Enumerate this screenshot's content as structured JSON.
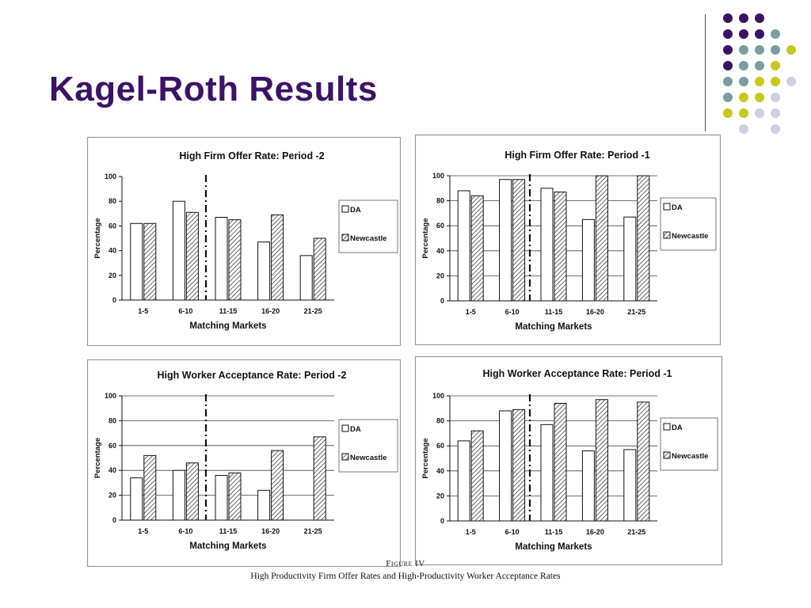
{
  "slide": {
    "title": "Kagel-Roth Results",
    "figure_label": "Figure IV",
    "figure_caption": "High Productivity Firm Offer Rates and High-Productivity Worker Acceptance Rates",
    "accent_colors": {
      "purple": "#3b1366",
      "teal": "#7a9e9f",
      "olive": "#c8c81e",
      "lavender": "#cfcfe6"
    }
  },
  "chart_data": [
    {
      "type": "bar",
      "title": "High Firm Offer Rate:  Period -2",
      "xlabel": "Matching Markets",
      "ylabel": "Percentage",
      "ylim": [
        0,
        100
      ],
      "yticks": [
        "0",
        "20",
        "40",
        "60",
        "80",
        "100"
      ],
      "categories": [
        "1-5",
        "6-10",
        "11-15",
        "16-20",
        "21-25"
      ],
      "series": [
        {
          "name": "DA",
          "values": [
            62,
            80,
            67,
            47,
            36
          ],
          "fill": "#ffffff"
        },
        {
          "name": "Newcastle",
          "values": [
            62,
            71,
            65,
            69,
            50
          ],
          "fill": "hatch"
        }
      ],
      "grid": false,
      "legend_position": "right"
    },
    {
      "type": "bar",
      "title": "High Firm Offer Rate:  Period -1",
      "xlabel": "Matching Markets",
      "ylabel": "Percentage",
      "ylim": [
        0,
        100
      ],
      "yticks": [
        "0",
        "20",
        "40",
        "60",
        "80",
        "100"
      ],
      "categories": [
        "1-5",
        "6-10",
        "11-15",
        "16-20",
        "21-25"
      ],
      "series": [
        {
          "name": "DA",
          "values": [
            88,
            97,
            90,
            65,
            67
          ],
          "fill": "#ffffff"
        },
        {
          "name": "Newcastle",
          "values": [
            84,
            97,
            87,
            100,
            100
          ],
          "fill": "hatch"
        }
      ],
      "grid": true,
      "legend_position": "right"
    },
    {
      "type": "bar",
      "title": "High Worker Acceptance Rate:  Period -2",
      "xlabel": "Matching Markets",
      "ylabel": "Percentage",
      "ylim": [
        0,
        100
      ],
      "yticks": [
        "0",
        "20",
        "40",
        "60",
        "80",
        "100"
      ],
      "categories": [
        "1-5",
        "6-10",
        "11-15",
        "16-20",
        "21-25"
      ],
      "series": [
        {
          "name": "DA",
          "values": [
            34,
            40,
            36,
            24,
            0
          ],
          "fill": "#ffffff"
        },
        {
          "name": "Newcastle",
          "values": [
            52,
            46,
            38,
            56,
            67
          ],
          "fill": "hatch"
        }
      ],
      "grid": true,
      "legend_position": "right"
    },
    {
      "type": "bar",
      "title": "High Worker Acceptance Rate:  Period -1",
      "xlabel": "Matching Markets",
      "ylabel": "Percentage",
      "ylim": [
        0,
        100
      ],
      "yticks": [
        "0",
        "20",
        "40",
        "60",
        "80",
        "100"
      ],
      "categories": [
        "1-5",
        "6-10",
        "11-15",
        "16-20",
        "21-25"
      ],
      "series": [
        {
          "name": "DA",
          "values": [
            64,
            88,
            77,
            56,
            57
          ],
          "fill": "#ffffff"
        },
        {
          "name": "Newcastle",
          "values": [
            72,
            89,
            94,
            97,
            95
          ],
          "fill": "hatch"
        }
      ],
      "grid": true,
      "legend_position": "right"
    }
  ]
}
